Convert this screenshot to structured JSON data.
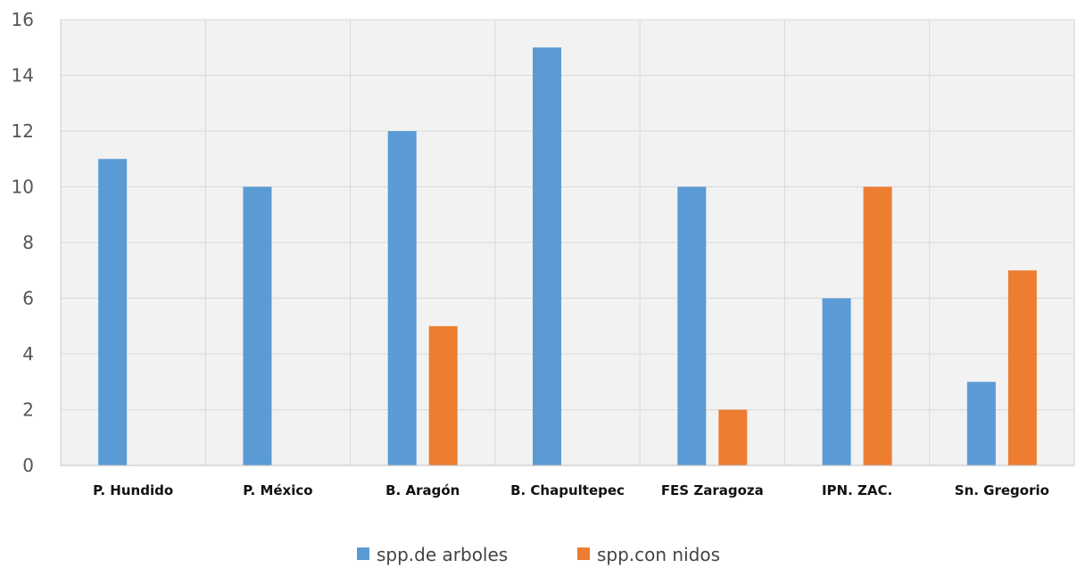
{
  "chart_data": {
    "type": "bar",
    "title": "",
    "xlabel": "",
    "ylabel": "",
    "ylim": [
      0,
      16
    ],
    "yticks": [
      0,
      2,
      4,
      6,
      8,
      10,
      12,
      14,
      16
    ],
    "grid": true,
    "legend_position": "bottom",
    "categories": [
      "P. Hundido",
      "P. México",
      "B. Aragón",
      "B. Chapultepec",
      "FES Zaragoza",
      "IPN. ZAC.",
      "Sn. Gregorio"
    ],
    "series": [
      {
        "name": "spp.de arboles",
        "color": "#5b9bd5",
        "values": [
          11,
          10,
          12,
          15,
          10,
          6,
          3
        ]
      },
      {
        "name": "spp.con nidos",
        "color": "#ed7d31",
        "values": [
          0,
          0,
          5,
          0,
          2,
          10,
          7
        ]
      }
    ],
    "plot_background": "#f2f2f2",
    "gridline_color": "#d9d9d9"
  }
}
